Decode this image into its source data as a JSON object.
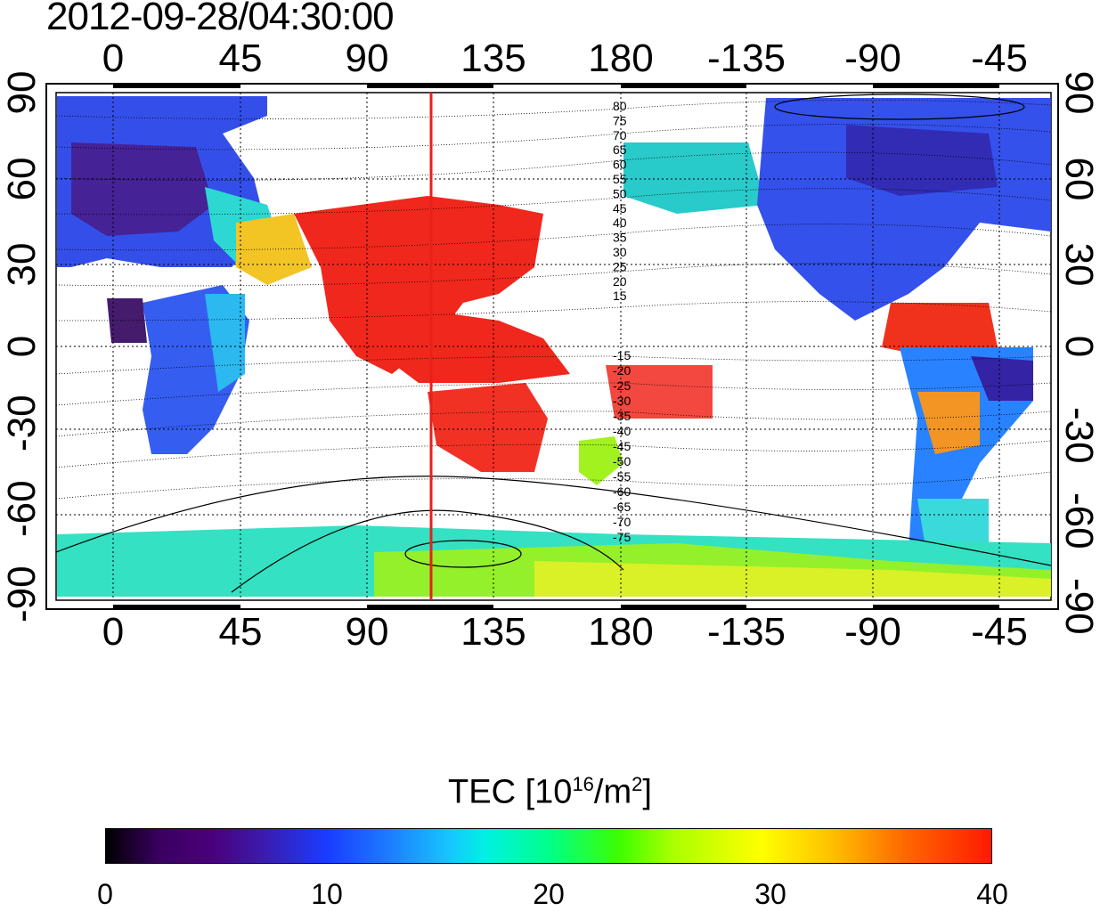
{
  "timestamp": "2012-09-28/04:30:00",
  "map": {
    "top_lon_ticks": [
      "0",
      "45",
      "90",
      "135",
      "180",
      "-135",
      "-90",
      "-45"
    ],
    "bottom_lon_ticks": [
      "0",
      "45",
      "90",
      "135",
      "180",
      "-135",
      "-90",
      "-45"
    ],
    "left_lat_ticks": [
      "90",
      "60",
      "30",
      "0",
      "-30",
      "-60",
      "-90"
    ],
    "right_lat_ticks": [
      "90",
      "60",
      "30",
      "0",
      "-30",
      "-60",
      "-90"
    ],
    "meridian_marker_lon": 115,
    "magnetic_lat_labels_north": [
      "80",
      "75",
      "70",
      "65",
      "60",
      "55",
      "50",
      "45",
      "40",
      "35",
      "30",
      "25",
      "20",
      "15"
    ],
    "magnetic_lat_labels_south": [
      "-15",
      "-20",
      "-25",
      "-30",
      "-35",
      "-40",
      "-45",
      "-50",
      "-55",
      "-60",
      "-65",
      "-70",
      "-75"
    ],
    "colors": {
      "marker": "#e8201c",
      "gridline": "#000000"
    }
  },
  "colorbar": {
    "title_prefix": "TEC  [10",
    "title_exp": "16",
    "title_mid": "/m",
    "title_exp2": "2",
    "title_suffix": "]",
    "tick_labels": [
      "0",
      "10",
      "20",
      "30",
      "40"
    ],
    "range": [
      0,
      40
    ]
  }
}
